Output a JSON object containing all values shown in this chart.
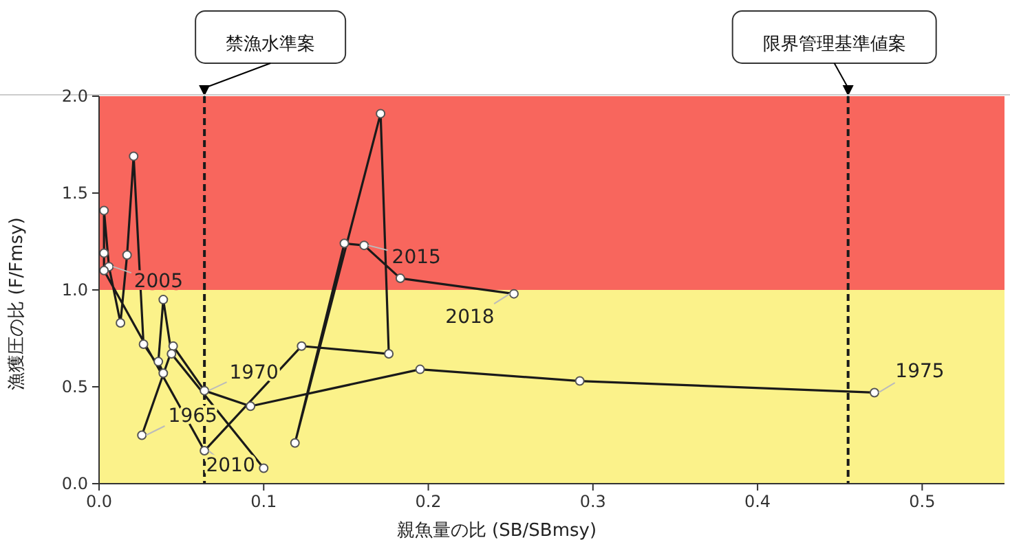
{
  "chart_data": {
    "type": "line",
    "xlabel": "親魚量の比 (SB/SBmsy)",
    "ylabel": "漁獲圧の比 (F/Fmsy)",
    "xlim": [
      0,
      0.55
    ],
    "ylim": [
      0,
      2
    ],
    "xticks": [
      {
        "value": 0,
        "label": "0.0"
      },
      {
        "value": 0.1,
        "label": "0.1"
      },
      {
        "value": 0.2,
        "label": "0.2"
      },
      {
        "value": 0.3,
        "label": "0.3"
      },
      {
        "value": 0.4,
        "label": "0.4"
      },
      {
        "value": 0.5,
        "label": "0.5"
      }
    ],
    "yticks": [
      {
        "value": 0,
        "label": "0.0"
      },
      {
        "value": 0.5,
        "label": "0.5"
      },
      {
        "value": 1,
        "label": "1.0"
      },
      {
        "value": 1.5,
        "label": "1.5"
      },
      {
        "value": 2,
        "label": "2.0"
      }
    ],
    "grid": false,
    "marker": "circle",
    "line_style": "solid",
    "series": [
      {
        "color": "#1a1a1a",
        "x": [
          0.026,
          0.045,
          0.064,
          0.092,
          0.195,
          0.292,
          0.471,
          null,
          0.1,
          0.044,
          0.039,
          0.036,
          0.039,
          0.027,
          0.021,
          0.017,
          0.013,
          0.006,
          0.003,
          0.003,
          0.003,
          0.064,
          0.123,
          0.176,
          0.171,
          0.119,
          0.149,
          0.161,
          0.183,
          0.252
        ],
        "values": [
          0.25,
          0.71,
          0.48,
          0.4,
          0.59,
          0.53,
          0.47,
          null,
          0.08,
          0.67,
          0.95,
          0.63,
          0.57,
          0.72,
          1.69,
          1.18,
          0.83,
          1.12,
          1.41,
          1.19,
          1.1,
          0.17,
          0.71,
          0.67,
          1.91,
          0.21,
          1.24,
          1.23,
          1.06,
          0.98
        ]
      }
    ],
    "bands": [
      {
        "axis": "y",
        "from": 0,
        "to": 1,
        "color": "#fbf28a"
      },
      {
        "axis": "y",
        "from": 1,
        "to": 2,
        "color": "#f8665d"
      }
    ],
    "ref_lines": [
      {
        "axis": "x",
        "value": 0.064,
        "label": "禁漁水準案",
        "color": "#1a1a1a",
        "line_style": "dashed"
      },
      {
        "axis": "x",
        "value": 0.455,
        "label": "限界管理基準値案",
        "color": "#1a1a1a",
        "line_style": "dashed"
      }
    ],
    "annotations": [
      {
        "text": "1965",
        "x": 0.026,
        "y": 0.25
      },
      {
        "text": "1970",
        "x": 0.064,
        "y": 0.48
      },
      {
        "text": "1975",
        "x": 0.471,
        "y": 0.47
      },
      {
        "text": "2005",
        "x": 0.006,
        "y": 1.12
      },
      {
        "text": "2010",
        "x": 0.064,
        "y": 0.17
      },
      {
        "text": "2015",
        "x": 0.161,
        "y": 1.23
      },
      {
        "text": "2018",
        "x": 0.252,
        "y": 0.98
      }
    ]
  }
}
